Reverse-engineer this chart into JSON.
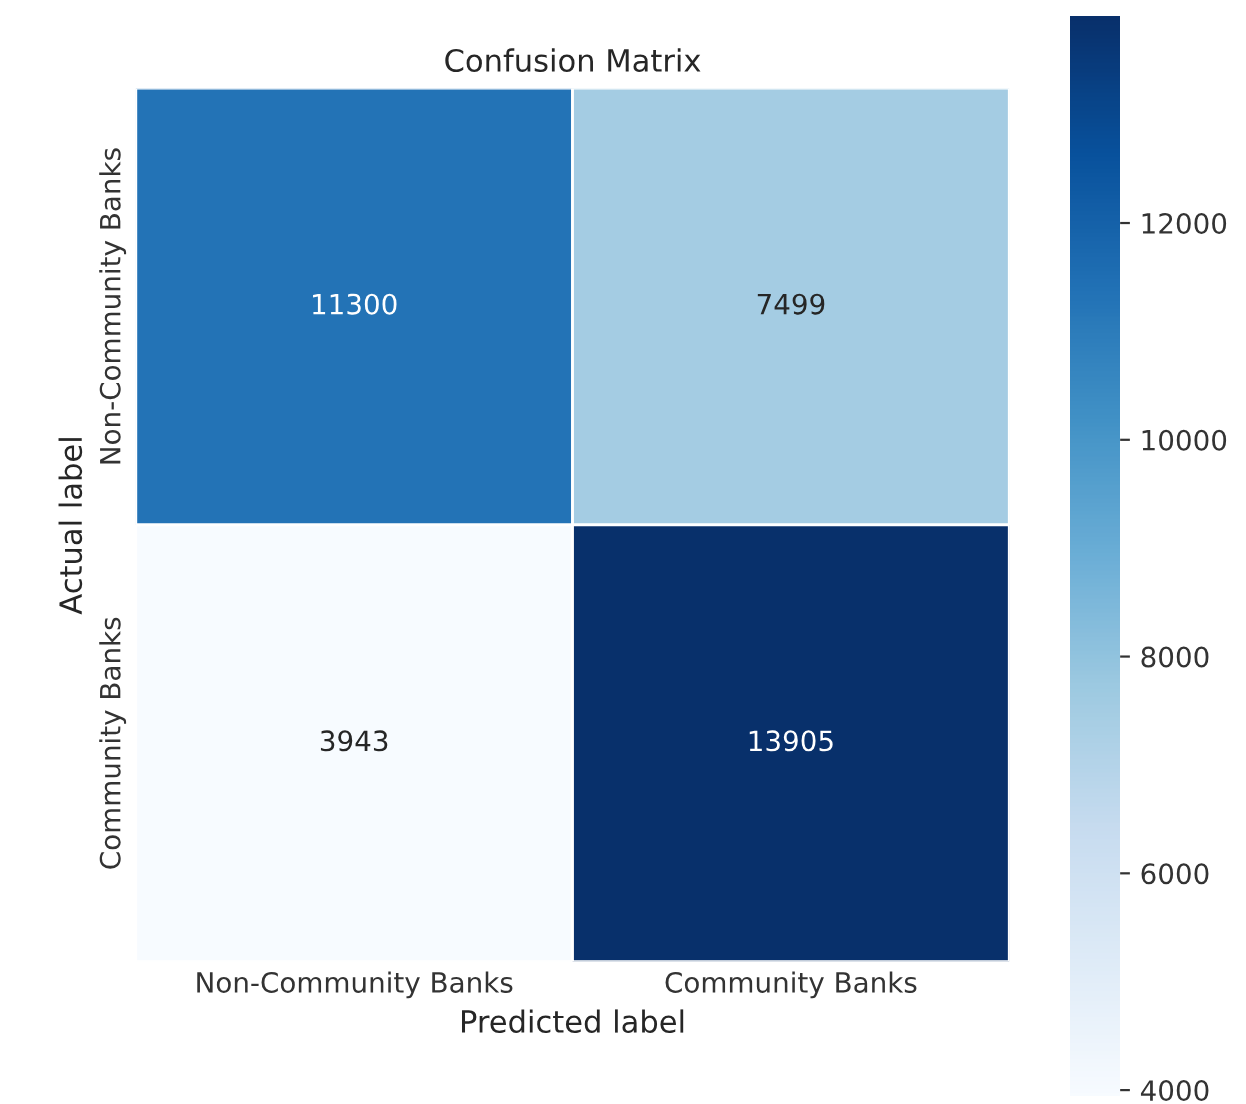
{
  "chart_data": {
    "type": "heatmap",
    "title": "Confusion Matrix",
    "xlabel": "Predicted label",
    "ylabel": "Actual label",
    "categories": [
      "Non-Community Banks",
      "Community Banks"
    ],
    "y_categories": [
      "Non-Community Banks",
      "Community Banks"
    ],
    "cells": [
      [
        11300,
        7499
      ],
      [
        3943,
        13905
      ]
    ],
    "data_labels": true,
    "clim": [
      3943,
      13905
    ],
    "cticks": [
      4000,
      6000,
      8000,
      10000,
      12000
    ],
    "grid": false
  }
}
